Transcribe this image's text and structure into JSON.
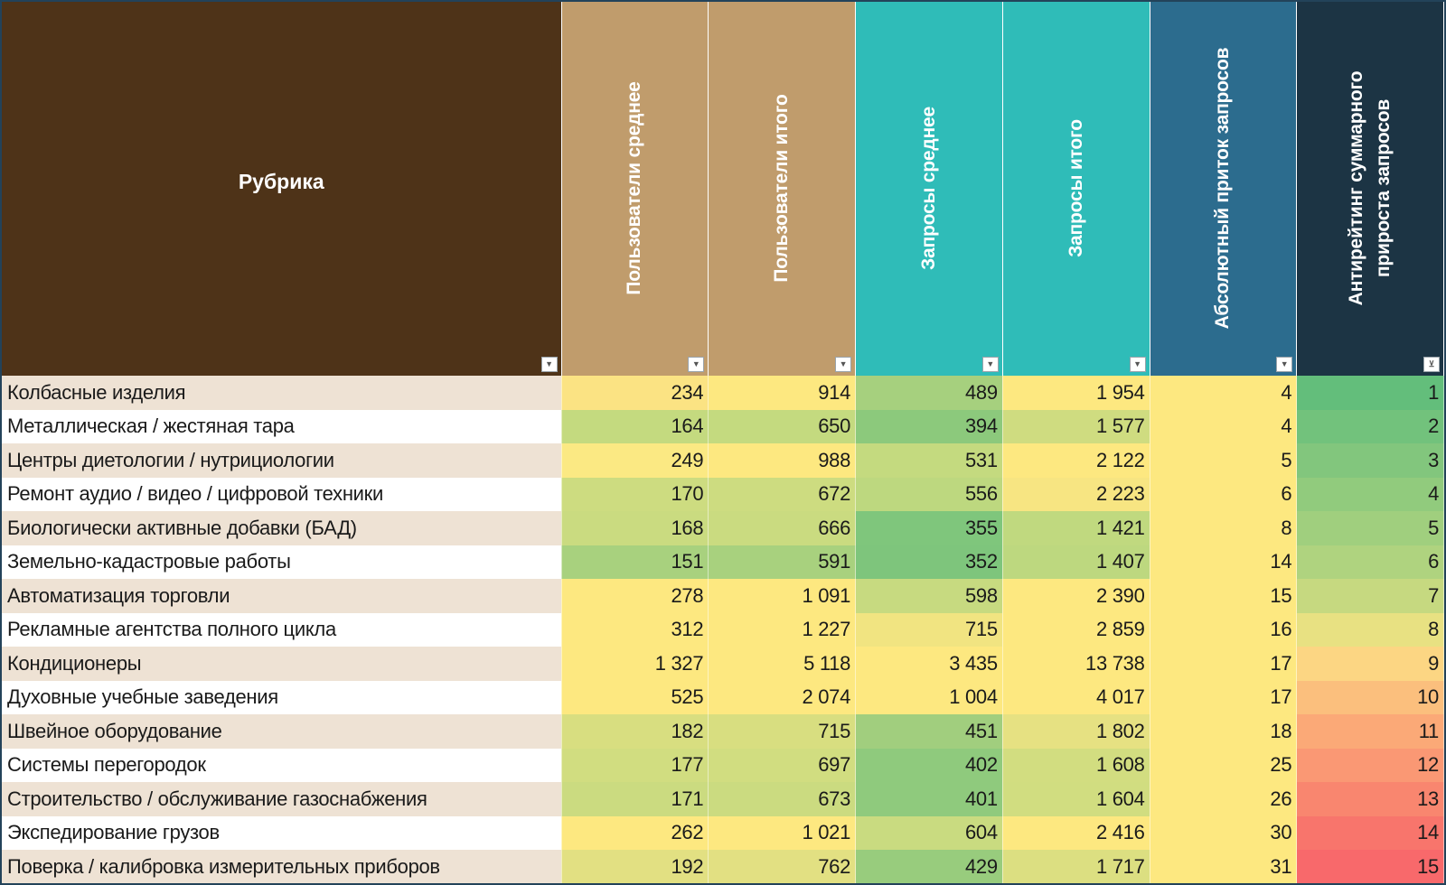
{
  "header": {
    "rubric": "Рубрика",
    "columns": [
      {
        "lines": [
          "Пользователи среднее"
        ],
        "color": "#c09c6c"
      },
      {
        "lines": [
          "Пользователи итого"
        ],
        "color": "#c09c6c"
      },
      {
        "lines": [
          "Запросы среднее"
        ],
        "color": "#2fbcb8"
      },
      {
        "lines": [
          "Запросы итого"
        ],
        "color": "#2fbcb8"
      },
      {
        "lines": [
          "Абсолютный приток запросов"
        ],
        "color": "#2c6c8e"
      },
      {
        "lines": [
          "Антирейтинг суммарного",
          "прироста запросов"
        ],
        "color": "#1c3444"
      }
    ],
    "rubric_color": "#4e3318",
    "filter_icon": "filter-dropdown-icon",
    "active_filter_icon": "filter-active-icon"
  },
  "rows": [
    {
      "name": "Колбасные изделия",
      "v": [
        "234",
        "914",
        "489",
        "1 954",
        "4",
        "1"
      ],
      "c": [
        "#fbe383",
        "#fde880",
        "#a6d07e",
        "#fde880",
        "#fde880",
        "#63be7b"
      ]
    },
    {
      "name": "Металлическая / жестяная тара",
      "v": [
        "164",
        "650",
        "394",
        "1 577",
        "4",
        "2"
      ],
      "c": [
        "#c4da7f",
        "#c4da7f",
        "#8cc97c",
        "#cfdc80",
        "#fde880",
        "#72c27c"
      ]
    },
    {
      "name": "Центры диетологии / нутрициологии",
      "v": [
        "249",
        "988",
        "531",
        "2 122",
        "5",
        "3"
      ],
      "c": [
        "#fbe983",
        "#fde880",
        "#c4da7f",
        "#fde880",
        "#fde880",
        "#82c67d"
      ]
    },
    {
      "name": "Ремонт аудио / видео / цифровой техники",
      "v": [
        "170",
        "672",
        "556",
        "2 223",
        "6",
        "4"
      ],
      "c": [
        "#cddc80",
        "#cddc80",
        "#bdd87f",
        "#f7e582",
        "#fde880",
        "#91cb7d"
      ]
    },
    {
      "name": "Биологически активные добавки (БАД)",
      "v": [
        "168",
        "666",
        "355",
        "1 421",
        "8",
        "5"
      ],
      "c": [
        "#cadb80",
        "#cadb80",
        "#7fc67c",
        "#c0d97f",
        "#fde880",
        "#a0cf7e"
      ]
    },
    {
      "name": "Земельно-кадастровые работы",
      "v": [
        "151",
        "591",
        "352",
        "1 407",
        "14",
        "6"
      ],
      "c": [
        "#a8d17e",
        "#a8d17e",
        "#7ec57c",
        "#bdd87f",
        "#fde880",
        "#afd37f"
      ]
    },
    {
      "name": "Автоматизация торговли",
      "v": [
        "278",
        "1 091",
        "598",
        "2 390",
        "15",
        "7"
      ],
      "c": [
        "#fde880",
        "#fde880",
        "#c7da80",
        "#fde880",
        "#fde880",
        "#c6d980"
      ]
    },
    {
      "name": "Рекламные агентства полного цикла",
      "v": [
        "312",
        "1 227",
        "715",
        "2 859",
        "16",
        "8"
      ],
      "c": [
        "#fde880",
        "#fde880",
        "#f1e481",
        "#fde880",
        "#fde880",
        "#e8e182"
      ]
    },
    {
      "name": "Кондиционеры",
      "v": [
        "1 327",
        "5 118",
        "3 435",
        "13 738",
        "17",
        "9"
      ],
      "c": [
        "#fde880",
        "#fde880",
        "#fde880",
        "#fde880",
        "#fde880",
        "#fcd683"
      ]
    },
    {
      "name": "Духовные учебные заведения",
      "v": [
        "525",
        "2 074",
        "1 004",
        "4 017",
        "17",
        "10"
      ],
      "c": [
        "#fde880",
        "#fde880",
        "#fde880",
        "#fde880",
        "#fde880",
        "#fbbf7d"
      ]
    },
    {
      "name": "Швейное оборудование",
      "v": [
        "182",
        "715",
        "451",
        "1 802",
        "18",
        "11"
      ],
      "c": [
        "#d8de80",
        "#d8de80",
        "#a1ce7e",
        "#e6e182",
        "#fde880",
        "#fba977"
      ]
    },
    {
      "name": "Системы перегородок",
      "v": [
        "177",
        "697",
        "402",
        "1 608",
        "25",
        "12"
      ],
      "c": [
        "#d1dd80",
        "#d1dd80",
        "#8fca7d",
        "#d2dd80",
        "#fde880",
        "#fa9874"
      ]
    },
    {
      "name": "Строительство / обслуживание газоснабжения",
      "v": [
        "171",
        "673",
        "401",
        "1 604",
        "26",
        "13"
      ],
      "c": [
        "#cbdb80",
        "#cbdb80",
        "#8fca7d",
        "#d1dd80",
        "#fde880",
        "#f9866f"
      ]
    },
    {
      "name": "Экспедирование грузов",
      "v": [
        "262",
        "1 021",
        "604",
        "2 416",
        "30",
        "14"
      ],
      "c": [
        "#fde880",
        "#fde880",
        "#c9db80",
        "#fde880",
        "#fde880",
        "#f8756c"
      ]
    },
    {
      "name": "Поверка / калибровка измерительных приборов",
      "v": [
        "192",
        "762",
        "429",
        "1 717",
        "31",
        "15"
      ],
      "c": [
        "#e2e082",
        "#e2e082",
        "#98cc7d",
        "#dcdf81",
        "#fde880",
        "#f8696b"
      ]
    }
  ]
}
